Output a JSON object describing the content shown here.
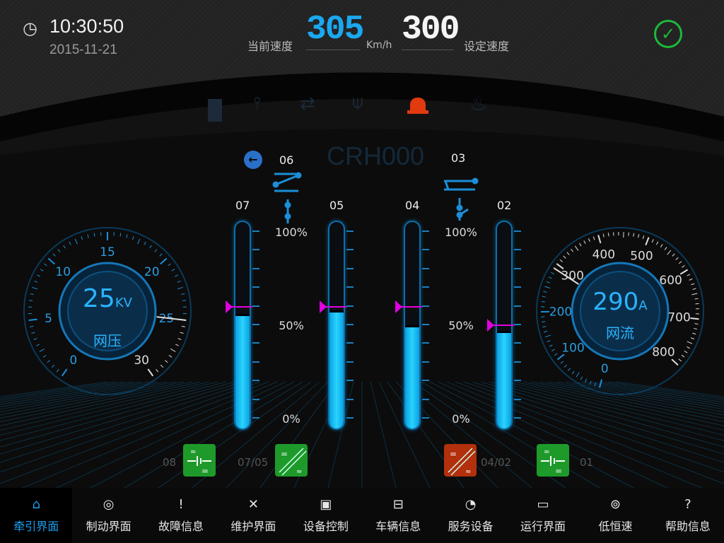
{
  "header": {
    "time": "10:30:50",
    "date": "2015-11-21",
    "current_speed_label": "当前速度",
    "current_speed": "305",
    "speed_unit": "Km/h",
    "set_speed": "300",
    "set_speed_label": "设定速度",
    "status_icon": "check-circle-icon",
    "status_color": "#1db83a"
  },
  "status_icons": [
    "door-icon",
    "pantograph-switch-icon",
    "transfer-arrows-icon",
    "pantograph-icon",
    "alarm-beacon-icon",
    "fire-icon"
  ],
  "train_id": "CRH000",
  "direction_icon": "arrow-left-icon",
  "car_labels": {
    "left_top": "06",
    "right_top": "03"
  },
  "bars": [
    {
      "id": "07",
      "fill_pct": 56,
      "marker_pct": 60
    },
    {
      "id": "05",
      "fill_pct": 58,
      "marker_pct": 60
    },
    {
      "id": "04",
      "fill_pct": 50,
      "marker_pct": 60
    },
    {
      "id": "02",
      "fill_pct": 47,
      "marker_pct": 50
    }
  ],
  "scale_labels": {
    "top": "100%",
    "mid": "50%",
    "bottom": "0%"
  },
  "voltage_gauge": {
    "value": "25",
    "unit": "KV",
    "label": "网压",
    "min": 0,
    "max": 30,
    "needle": 25,
    "ticks": [
      "0",
      "5",
      "10",
      "15",
      "20",
      "25",
      "30"
    ]
  },
  "current_gauge": {
    "value": "290",
    "unit": "A",
    "label": "网流",
    "min": 0,
    "max": 800,
    "needle": 290,
    "ticks": [
      "0",
      "100",
      "200",
      "300",
      "400",
      "500",
      "600",
      "700",
      "800"
    ]
  },
  "converters": [
    {
      "label": "08",
      "type": "inverter",
      "state": "ok",
      "color": "#1e9a2a"
    },
    {
      "label": "07/05",
      "type": "converter",
      "state": "ok",
      "color": "#1e9a2a"
    },
    {
      "label": "04/02",
      "type": "converter",
      "state": "fault",
      "color": "#b2300c"
    },
    {
      "label": "01",
      "type": "inverter",
      "state": "ok",
      "color": "#1e9a2a"
    }
  ],
  "nav": [
    {
      "label": "牵引界面",
      "icon": "home-icon",
      "active": true
    },
    {
      "label": "制动界面",
      "icon": "brake-disc-icon"
    },
    {
      "label": "故障信息",
      "icon": "alert-icon"
    },
    {
      "label": "维护界面",
      "icon": "tools-icon"
    },
    {
      "label": "设备控制",
      "icon": "device-control-icon"
    },
    {
      "label": "车辆信息",
      "icon": "train-icon"
    },
    {
      "label": "服务设备",
      "icon": "service-gauge-icon"
    },
    {
      "label": "运行界面",
      "icon": "monitor-icon"
    },
    {
      "label": "低恒速",
      "icon": "speed-icon"
    },
    {
      "label": "帮助信息",
      "icon": "help-icon"
    }
  ],
  "accent": "#1aa0f0"
}
